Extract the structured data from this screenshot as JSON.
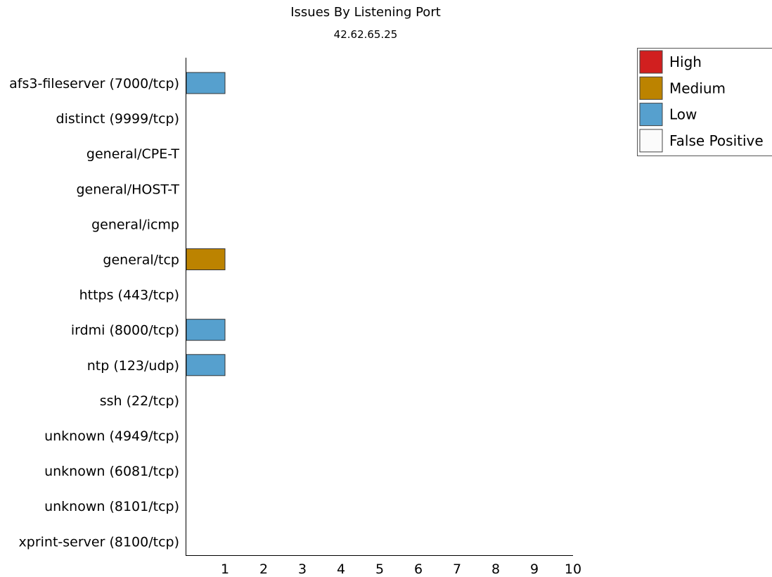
{
  "chart_data": {
    "type": "bar",
    "orientation": "horizontal",
    "stacked": true,
    "title": "Issues By Listening Port",
    "subtitle": "42.62.65.25",
    "xlabel": "",
    "ylabel": "",
    "xlim": [
      0,
      10
    ],
    "x_ticks": [
      1,
      2,
      3,
      4,
      5,
      6,
      7,
      8,
      9,
      10
    ],
    "grid": false,
    "legend_position": "top-right",
    "categories": [
      "afs3-fileserver (7000/tcp)",
      "distinct (9999/tcp)",
      "general/CPE-T",
      "general/HOST-T",
      "general/icmp",
      "general/tcp",
      "https (443/tcp)",
      "irdmi (8000/tcp)",
      "ntp (123/udp)",
      "ssh (22/tcp)",
      "unknown (4949/tcp)",
      "unknown (6081/tcp)",
      "unknown (8101/tcp)",
      "xprint-server (8100/tcp)"
    ],
    "series": [
      {
        "name": "High",
        "color": "#d11f1f",
        "values": [
          0,
          0,
          0,
          0,
          0,
          0,
          0,
          0,
          0,
          0,
          0,
          0,
          0,
          0
        ]
      },
      {
        "name": "Medium",
        "color": "#bc8300",
        "values": [
          0,
          0,
          0,
          0,
          0,
          1,
          0,
          0,
          0,
          0,
          0,
          0,
          0,
          0
        ]
      },
      {
        "name": "Low",
        "color": "#56a0ce",
        "values": [
          1,
          0,
          0,
          0,
          0,
          0,
          0,
          1,
          1,
          0,
          0,
          0,
          0,
          0
        ]
      },
      {
        "name": "False Positive",
        "color": "#fbfbfb",
        "values": [
          0,
          0,
          0,
          0,
          0,
          0,
          0,
          0,
          0,
          0,
          0,
          0,
          0,
          0
        ]
      }
    ]
  }
}
